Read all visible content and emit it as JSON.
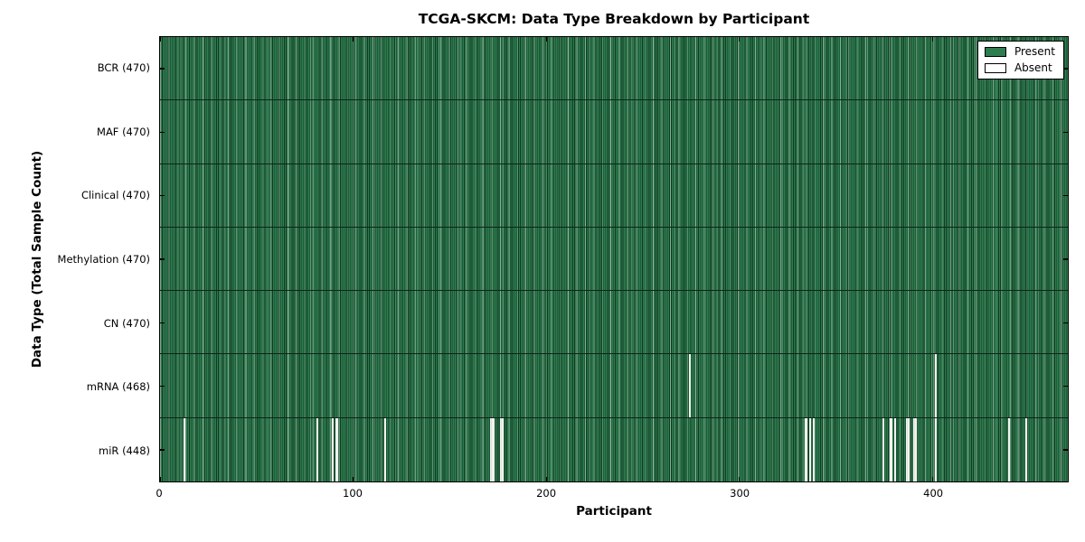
{
  "chart_data": {
    "type": "heatmap",
    "title": "TCGA-SKCM: Data Type Breakdown by Participant",
    "xlabel": "Participant",
    "ylabel": "Data Type (Total Sample Count)",
    "xlim": [
      0,
      470
    ],
    "n_participants": 470,
    "x_ticks": [
      0,
      100,
      200,
      300,
      400
    ],
    "grid": false,
    "legend_position": "upper right",
    "legend": [
      {
        "label": "Present",
        "color": "#2e7d50"
      },
      {
        "label": "Absent",
        "color": "#ffffff"
      }
    ],
    "colors": {
      "present_fill": "#2e7d50",
      "bar_edge": "#10391f",
      "absent_fill": "#f2f2ee",
      "row_divider": "#0c2517",
      "spine": "#000000",
      "background": "#ffffff"
    },
    "rows": [
      {
        "data_type": "BCR",
        "label": "BCR (470)",
        "present_count": 470,
        "absent_count": 0,
        "absent_participants": []
      },
      {
        "data_type": "MAF",
        "label": "MAF (470)",
        "present_count": 470,
        "absent_count": 0,
        "absent_participants": []
      },
      {
        "data_type": "Clinical",
        "label": "Clinical (470)",
        "present_count": 470,
        "absent_count": 0,
        "absent_participants": []
      },
      {
        "data_type": "Methylation",
        "label": "Methylation (470)",
        "present_count": 470,
        "absent_count": 0,
        "absent_participants": []
      },
      {
        "data_type": "CN",
        "label": "CN (470)",
        "present_count": 470,
        "absent_count": 0,
        "absent_participants": []
      },
      {
        "data_type": "mRNA",
        "label": "mRNA (468)",
        "present_count": 468,
        "absent_count": 2,
        "absent_participants": [
          274,
          401
        ]
      },
      {
        "data_type": "miR",
        "label": "miR (448)",
        "present_count": 448,
        "absent_count": 22,
        "absent_participants": [
          12,
          81,
          89,
          91,
          116,
          171,
          172,
          176,
          177,
          334,
          336,
          338,
          374,
          378,
          380,
          386,
          387,
          390,
          391,
          401,
          439,
          448
        ]
      }
    ]
  }
}
